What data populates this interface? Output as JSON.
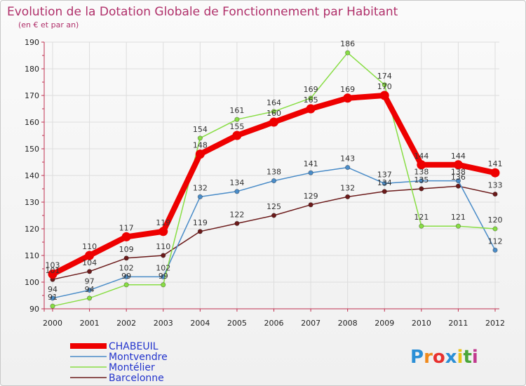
{
  "chart_data": {
    "type": "line",
    "title": "Evolution de la Dotation Globale de Fonctionnement par Habitant",
    "subtitle": "(en € et par an)",
    "xlabel": "",
    "ylabel": "",
    "x": [
      "2000",
      "2001",
      "2002",
      "2003",
      "2004",
      "2005",
      "2006",
      "2007",
      "2008",
      "2009",
      "2010",
      "2011",
      "2012"
    ],
    "ylim": [
      90,
      190
    ],
    "yticks": [
      "90",
      "100",
      "110",
      "120",
      "130",
      "140",
      "150",
      "160",
      "170",
      "180",
      "190"
    ],
    "grid": true,
    "legend_position": "bottom-left",
    "series": [
      {
        "name": "CHABEUIL",
        "color": "#ee0000",
        "values": [
          103,
          110,
          117,
          119,
          148,
          155,
          160,
          165,
          169,
          170,
          144,
          144,
          141
        ],
        "labels": [
          "103",
          "110",
          "117",
          "119",
          "148",
          "155",
          "160",
          "165",
          "169",
          "170",
          "144",
          "144",
          "141"
        ]
      },
      {
        "name": "Montvendre",
        "color": "#4a8cc8",
        "values": [
          94,
          97,
          102,
          102,
          132,
          134,
          138,
          141,
          143,
          137,
          138,
          138,
          112
        ],
        "labels": [
          "94",
          "97",
          "102",
          "102",
          "132",
          "134",
          "138",
          "141",
          "143",
          "137",
          "138",
          "138",
          "112"
        ]
      },
      {
        "name": "Montélier",
        "color": "#88dd44",
        "values": [
          91,
          94,
          99,
          99,
          154,
          161,
          164,
          169,
          186,
          174,
          121,
          121,
          120
        ],
        "labels": [
          "91",
          "94",
          "99",
          "99",
          "154",
          "161",
          "164",
          "169",
          "186",
          "174",
          "121",
          "121",
          "120"
        ]
      },
      {
        "name": "Barcelonne",
        "color": "#6b1a1a",
        "values": [
          101,
          104,
          109,
          110,
          119,
          122,
          125,
          129,
          132,
          134,
          135,
          136,
          133
        ],
        "labels": [
          "101",
          "104",
          "109",
          "110",
          "119",
          "122",
          "125",
          "129",
          "132",
          "134",
          "135",
          "136",
          "133"
        ]
      }
    ]
  },
  "logo": {
    "letters": [
      "P",
      "r",
      "o",
      "x",
      "i",
      "t",
      "i"
    ],
    "colors": [
      "#2b8fd6",
      "#f08a1c",
      "#e8312f",
      "#2b8fd6",
      "#e8c21a",
      "#4aa63a",
      "#c23a8e"
    ]
  }
}
